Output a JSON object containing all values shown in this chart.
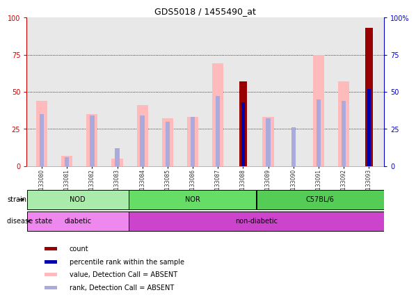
{
  "title": "GDS5018 / 1455490_at",
  "samples": [
    "GSM1133080",
    "GSM1133081",
    "GSM1133082",
    "GSM1133083",
    "GSM1133084",
    "GSM1133085",
    "GSM1133086",
    "GSM1133087",
    "GSM1133088",
    "GSM1133089",
    "GSM1133090",
    "GSM1133091",
    "GSM1133092",
    "GSM1133093"
  ],
  "pink_values": [
    44,
    7,
    35,
    5,
    41,
    32,
    33,
    69,
    0,
    33,
    0,
    75,
    57,
    0
  ],
  "blue_rank_values": [
    35,
    6,
    34,
    12,
    34,
    30,
    33,
    47,
    43,
    32,
    26,
    45,
    44,
    52
  ],
  "dark_red_values": [
    0,
    0,
    0,
    0,
    0,
    0,
    0,
    0,
    57,
    0,
    0,
    0,
    0,
    93
  ],
  "dark_blue_values": [
    0,
    0,
    0,
    0,
    0,
    0,
    0,
    0,
    43,
    0,
    0,
    0,
    0,
    52
  ],
  "ylim": [
    0,
    100
  ],
  "grid_values": [
    25,
    50,
    75
  ],
  "strain_groups": [
    {
      "label": "NOD",
      "start": 0,
      "end": 3,
      "color": "#aaeaaa"
    },
    {
      "label": "NOR",
      "start": 4,
      "end": 8,
      "color": "#66dd66"
    },
    {
      "label": "C57BL/6",
      "start": 9,
      "end": 13,
      "color": "#55cc55"
    }
  ],
  "disease_groups": [
    {
      "label": "diabetic",
      "start": 0,
      "end": 3,
      "color": "#ee88ee"
    },
    {
      "label": "non-diabetic",
      "start": 4,
      "end": 13,
      "color": "#cc44cc"
    }
  ],
  "left_axis_color": "#cc0000",
  "right_axis_color": "#0000cc",
  "pink_bar_color": "#ffbbbb",
  "blue_bar_color": "#aaaadd",
  "dark_red_color": "#990000",
  "dark_blue_color": "#0000aa",
  "bg_color": "#ffffff",
  "plot_bg_color": "#e8e8e8",
  "legend_items": [
    {
      "color": "#990000",
      "label": "count"
    },
    {
      "color": "#0000aa",
      "label": "percentile rank within the sample"
    },
    {
      "color": "#ffbbbb",
      "label": "value, Detection Call = ABSENT"
    },
    {
      "color": "#aaaadd",
      "label": "rank, Detection Call = ABSENT"
    }
  ]
}
